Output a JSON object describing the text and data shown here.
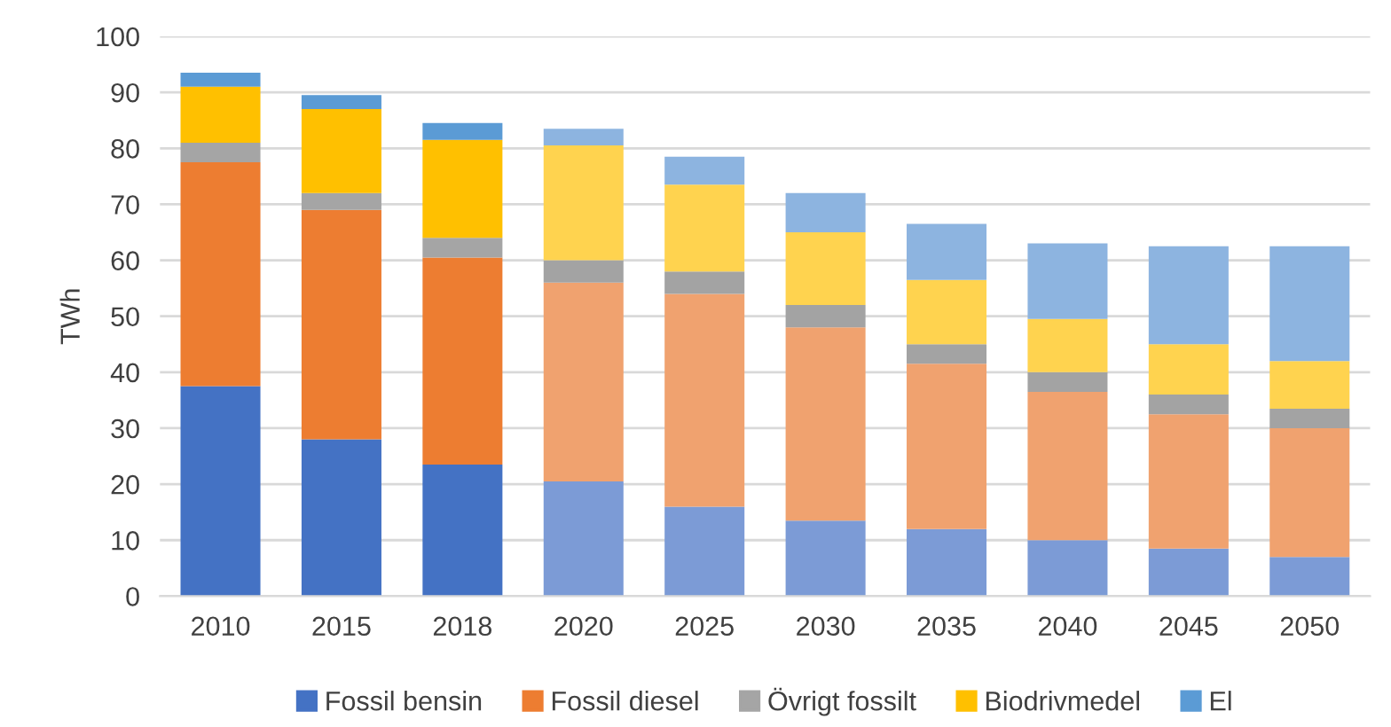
{
  "chart_data": {
    "type": "bar",
    "stacked": true,
    "ylabel": "TWh",
    "categories": [
      "2010",
      "2015",
      "2018",
      "2020",
      "2025",
      "2030",
      "2035",
      "2040",
      "2045",
      "2050"
    ],
    "ylim": [
      0,
      100
    ],
    "yticks": [
      0,
      10,
      20,
      30,
      40,
      50,
      60,
      70,
      80,
      90,
      100
    ],
    "grid": "y",
    "legend": "bottom",
    "series": [
      {
        "name": "Fossil bensin",
        "color": "#4472c4",
        "colors": [
          "#4472c4",
          "#4472c4",
          "#4472c4",
          "#7c9bd6",
          "#7c9bd6",
          "#7c9bd6",
          "#7c9bd6",
          "#7c9bd6",
          "#7c9bd6",
          "#7c9bd6"
        ],
        "values": [
          37.5,
          28,
          23.5,
          20.5,
          16,
          13.5,
          12,
          10,
          8.5,
          7
        ]
      },
      {
        "name": "Fossil diesel",
        "color": "#ed7d31",
        "colors": [
          "#ed7d31",
          "#ed7d31",
          "#ed7d31",
          "#f0a26f",
          "#f0a26f",
          "#f0a26f",
          "#f0a26f",
          "#f0a26f",
          "#f0a26f",
          "#f0a26f"
        ],
        "values": [
          40,
          41,
          37,
          35.5,
          38,
          34.5,
          29.5,
          26.5,
          24,
          23
        ]
      },
      {
        "name": "Övrigt fossilt",
        "color": "#a5a5a5",
        "colors": [
          "#a5a5a5",
          "#a5a5a5",
          "#a5a5a5",
          "#a3a3a3",
          "#a3a3a3",
          "#a3a3a3",
          "#a3a3a3",
          "#a3a3a3",
          "#a3a3a3",
          "#a3a3a3"
        ],
        "values": [
          3.5,
          3,
          3.5,
          4,
          4,
          4,
          3.5,
          3.5,
          3.5,
          3.5
        ]
      },
      {
        "name": "Biodrivmedel",
        "color": "#ffc000",
        "colors": [
          "#ffc000",
          "#ffc000",
          "#ffc000",
          "#ffd34f",
          "#ffd34f",
          "#ffd34f",
          "#ffd34f",
          "#ffd34f",
          "#ffd34f",
          "#ffd34f"
        ],
        "values": [
          10,
          15,
          17.5,
          20.5,
          15.5,
          13,
          11.5,
          9.5,
          9,
          8.5
        ]
      },
      {
        "name": "El",
        "color": "#5b9bd5",
        "colors": [
          "#5b9bd5",
          "#5b9bd5",
          "#5b9bd5",
          "#8db4e0",
          "#8db4e0",
          "#8db4e0",
          "#8db4e0",
          "#8db4e0",
          "#8db4e0",
          "#8db4e0"
        ],
        "values": [
          2.5,
          2.5,
          3,
          3,
          5,
          7,
          10,
          13.5,
          17.5,
          20.5
        ]
      }
    ]
  }
}
